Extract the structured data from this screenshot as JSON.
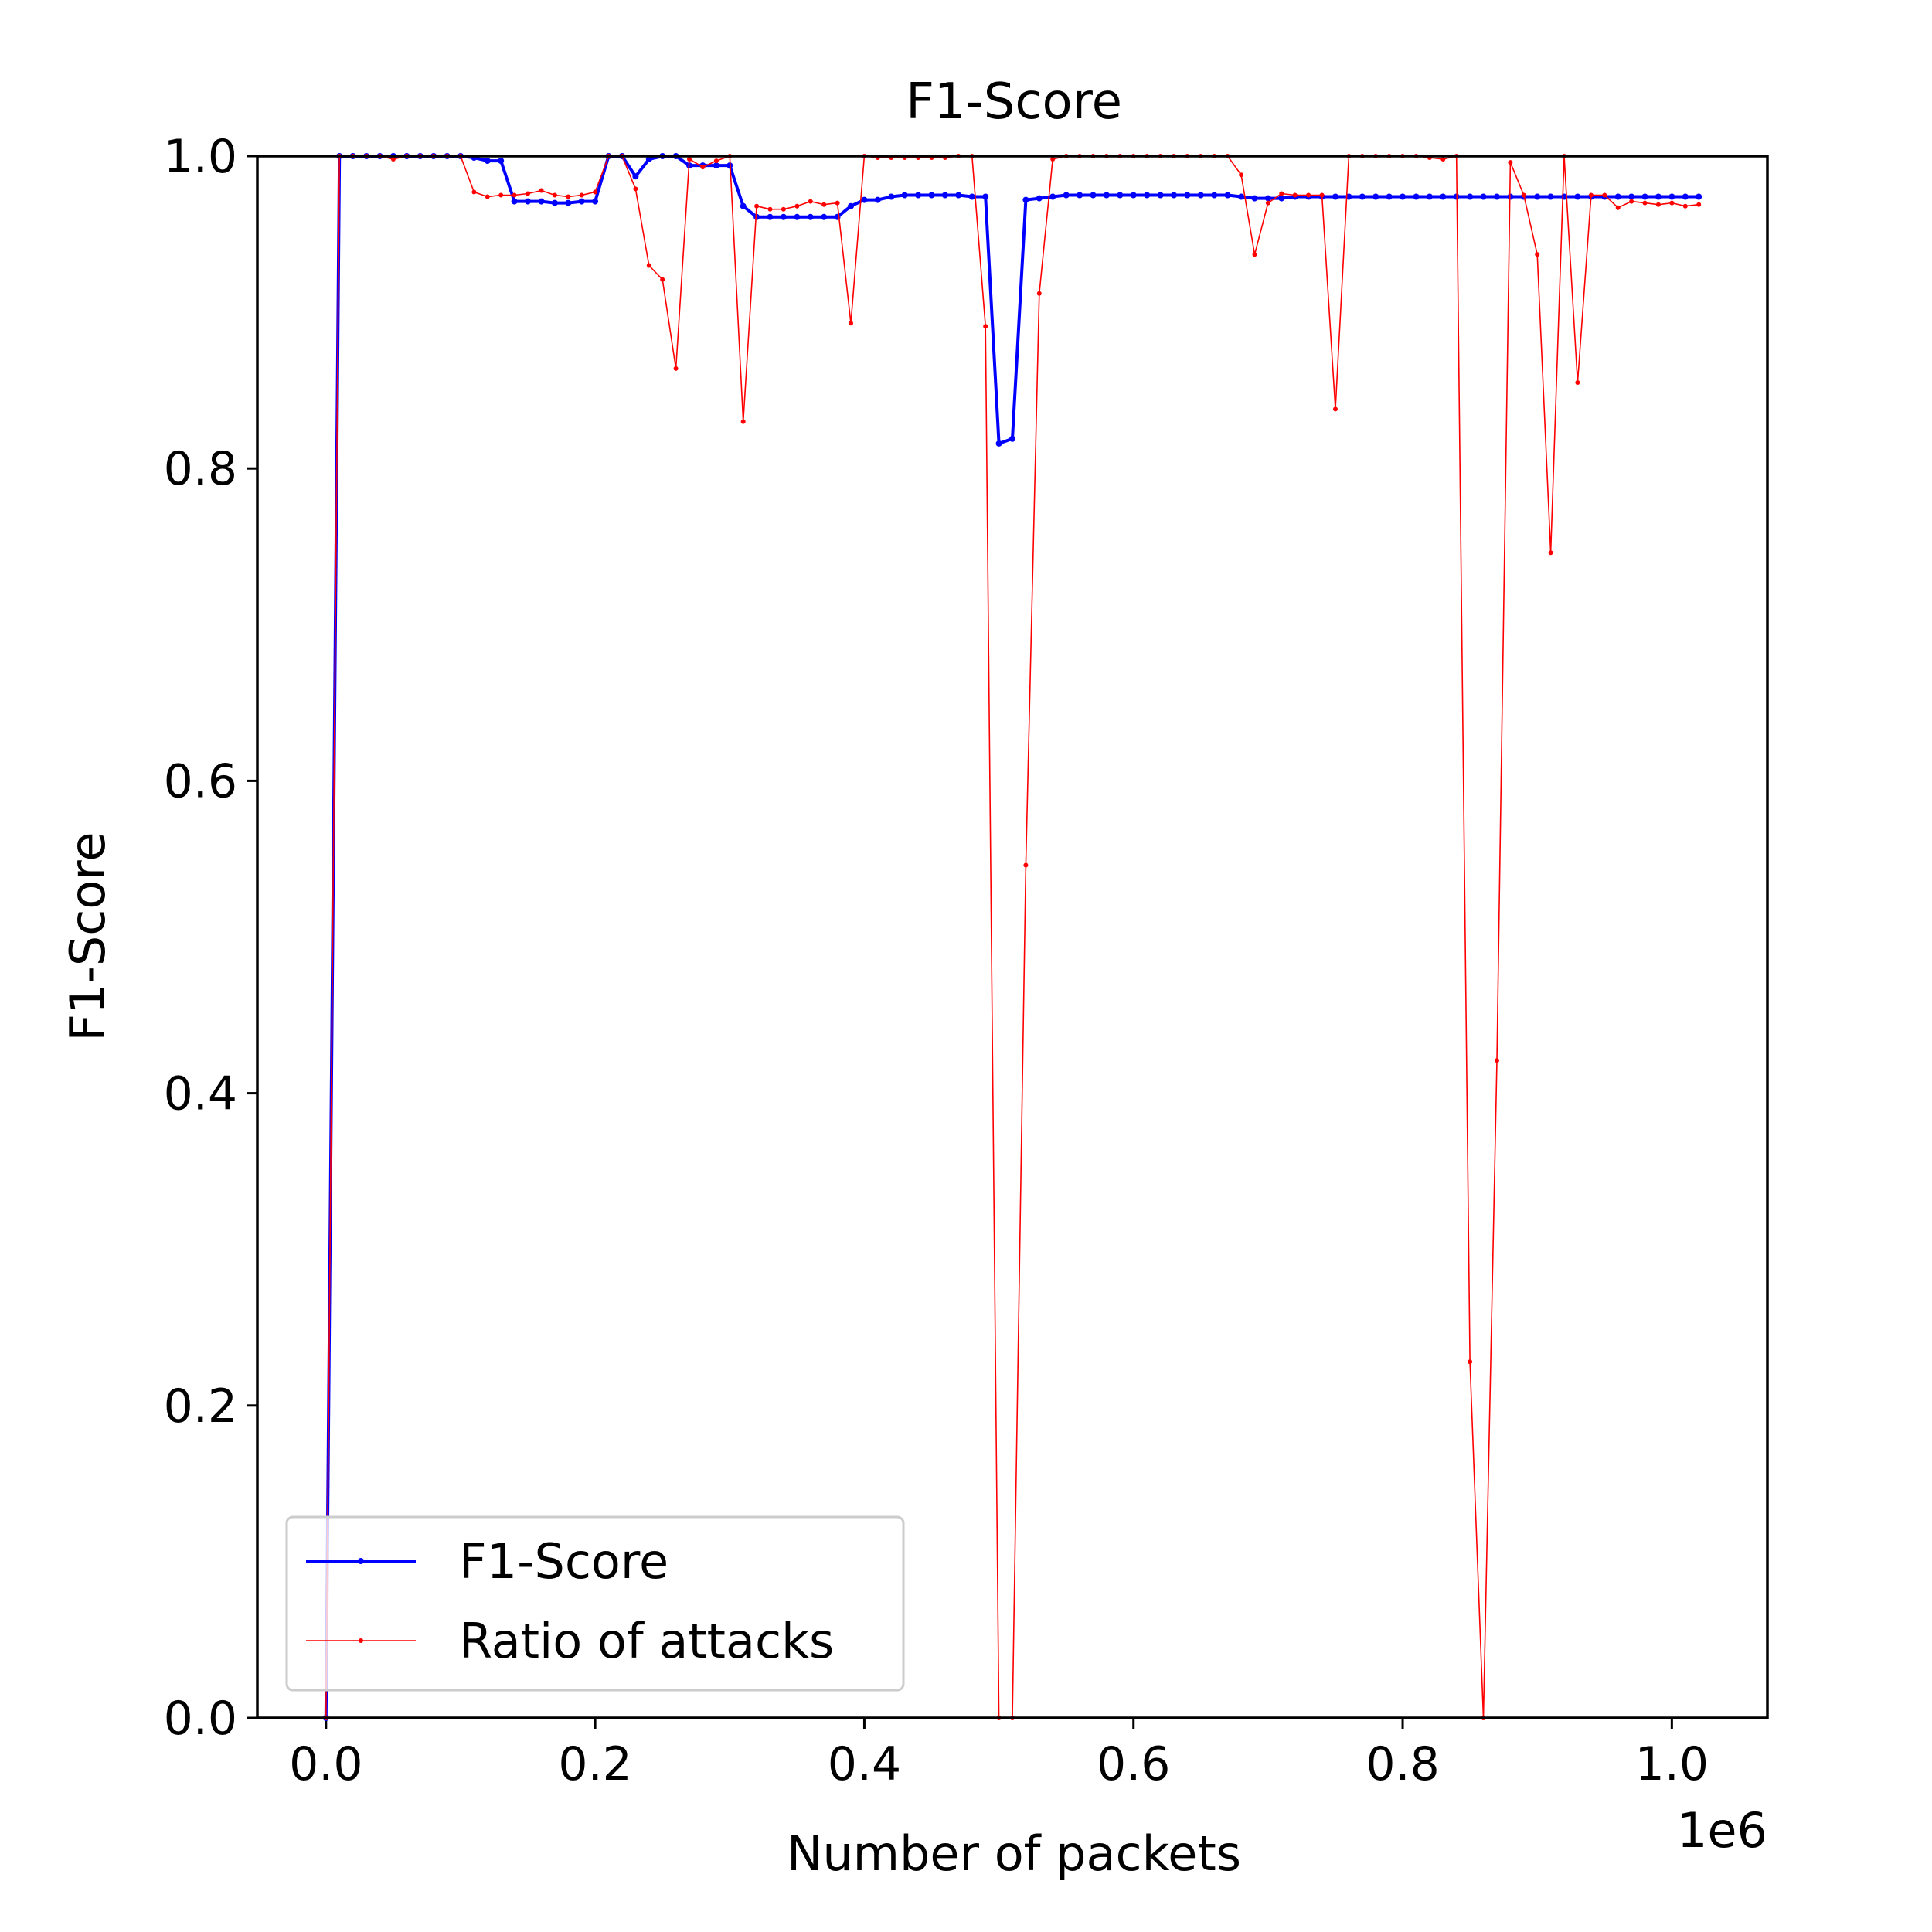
{
  "chart_data": {
    "type": "line",
    "title": "F1-Score",
    "xlabel": "Number of packets",
    "ylabel": "F1-Score",
    "x_offset_text": "1e6",
    "xlim": [
      -0.051,
      1.071
    ],
    "ylim": [
      0.0,
      1.0
    ],
    "xticks": [
      0.0,
      0.2,
      0.4,
      0.6,
      0.8,
      1.0
    ],
    "xtick_labels": [
      "0.0",
      "0.2",
      "0.4",
      "0.6",
      "0.8",
      "1.0"
    ],
    "yticks": [
      0.0,
      0.2,
      0.4,
      0.6,
      0.8,
      1.0
    ],
    "ytick_labels": [
      "0.0",
      "0.2",
      "0.4",
      "0.6",
      "0.8",
      "1.0"
    ],
    "grid": false,
    "legend": {
      "position": "lower left"
    },
    "x": [
      0.0,
      0.01,
      0.02,
      0.03,
      0.04,
      0.05,
      0.06,
      0.07,
      0.08,
      0.09,
      0.1,
      0.11,
      0.12,
      0.13,
      0.14,
      0.15,
      0.16,
      0.17,
      0.18,
      0.19,
      0.2,
      0.21,
      0.22,
      0.23,
      0.24,
      0.25,
      0.26,
      0.27,
      0.28,
      0.29,
      0.3,
      0.31,
      0.32,
      0.33,
      0.34,
      0.35,
      0.36,
      0.37,
      0.38,
      0.39,
      0.4,
      0.41,
      0.42,
      0.43,
      0.44,
      0.45,
      0.46,
      0.47,
      0.48,
      0.49,
      0.5,
      0.51,
      0.52,
      0.53,
      0.54,
      0.55,
      0.56,
      0.57,
      0.58,
      0.59,
      0.6,
      0.61,
      0.62,
      0.63,
      0.64,
      0.65,
      0.66,
      0.67,
      0.68,
      0.69,
      0.7,
      0.71,
      0.72,
      0.73,
      0.74,
      0.75,
      0.76,
      0.77,
      0.78,
      0.79,
      0.8,
      0.81,
      0.82,
      0.83,
      0.84,
      0.85,
      0.86,
      0.87,
      0.88,
      0.89,
      0.9,
      0.91,
      0.92,
      0.93,
      0.94,
      0.95,
      0.96,
      0.97,
      0.98,
      0.99,
      1.0,
      1.01,
      1.02
    ],
    "series": [
      {
        "name": "F1-Score",
        "color": "#0000ff",
        "values": [
          0.0,
          1.0,
          1.0,
          1.0,
          1.0,
          1.0,
          1.0,
          1.0,
          1.0,
          1.0,
          1.0,
          0.999,
          0.997,
          0.997,
          0.971,
          0.971,
          0.971,
          0.97,
          0.97,
          0.971,
          0.971,
          1.0,
          1.0,
          0.987,
          0.998,
          1.0,
          1.0,
          0.994,
          0.994,
          0.994,
          0.994,
          0.968,
          0.961,
          0.961,
          0.961,
          0.961,
          0.961,
          0.961,
          0.961,
          0.968,
          0.972,
          0.972,
          0.974,
          0.975,
          0.975,
          0.975,
          0.975,
          0.975,
          0.974,
          0.974,
          0.816,
          0.819,
          0.972,
          0.973,
          0.974,
          0.975,
          0.975,
          0.975,
          0.975,
          0.975,
          0.975,
          0.975,
          0.975,
          0.975,
          0.975,
          0.975,
          0.975,
          0.975,
          0.974,
          0.973,
          0.973,
          0.973,
          0.974,
          0.974,
          0.974,
          0.974,
          0.974,
          0.974,
          0.974,
          0.974,
          0.974,
          0.974,
          0.974,
          0.974,
          0.974,
          0.974,
          0.974,
          0.974,
          0.974,
          0.974,
          0.974,
          0.974,
          0.974,
          0.974,
          0.974,
          0.974,
          0.974,
          0.974,
          0.974,
          0.974,
          0.974,
          0.974,
          0.974
        ]
      },
      {
        "name": "Ratio of attacks",
        "color": "#ff0000",
        "values": [
          0.0,
          1.0,
          1.0,
          1.0,
          1.0,
          0.998,
          1.0,
          1.0,
          1.0,
          1.0,
          1.0,
          0.977,
          0.974,
          0.975,
          0.975,
          0.976,
          0.978,
          0.975,
          0.974,
          0.975,
          0.977,
          1.0,
          1.0,
          0.979,
          0.93,
          0.921,
          0.864,
          0.998,
          0.993,
          0.997,
          1.0,
          0.83,
          0.968,
          0.966,
          0.966,
          0.968,
          0.971,
          0.969,
          0.97,
          0.893,
          1.0,
          0.999,
          0.999,
          0.999,
          0.999,
          0.999,
          0.999,
          1.0,
          1.0,
          0.891,
          0.0,
          0.0,
          0.546,
          0.912,
          0.998,
          1.0,
          1.0,
          1.0,
          1.0,
          1.0,
          1.0,
          1.0,
          1.0,
          1.0,
          1.0,
          1.0,
          1.0,
          1.0,
          0.988,
          0.937,
          0.97,
          0.976,
          0.975,
          0.975,
          0.975,
          0.838,
          1.0,
          1.0,
          1.0,
          1.0,
          1.0,
          1.0,
          0.999,
          0.998,
          1.0,
          0.228,
          0.0,
          0.421,
          0.996,
          0.975,
          0.937,
          0.746,
          1.0,
          0.855,
          0.975,
          0.975,
          0.967,
          0.971,
          0.97,
          0.969,
          0.97,
          0.968,
          0.969
        ]
      }
    ]
  }
}
